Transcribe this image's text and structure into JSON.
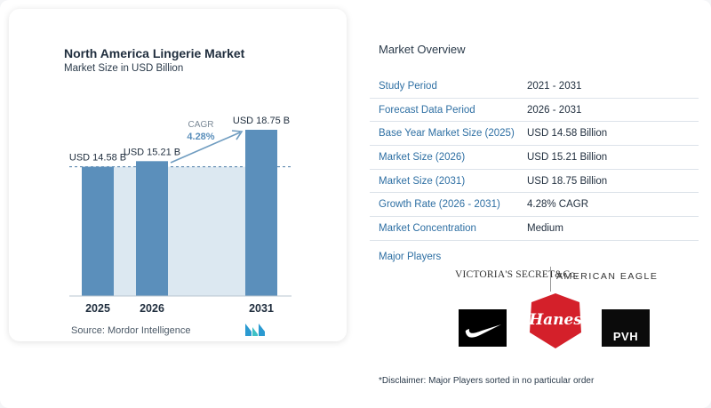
{
  "chart_data": {
    "type": "bar",
    "title": "North America Lingerie Market",
    "subtitle": "Market Size in USD Billion",
    "categories": [
      "2025",
      "2026",
      "2031"
    ],
    "values": [
      14.58,
      15.21,
      18.75
    ],
    "value_labels": [
      "USD 14.58 B",
      "USD 15.21 B",
      "USD 18.75 B"
    ],
    "ylim": [
      0,
      18.75
    ],
    "grid": false,
    "bar_color": "#5b8fbb",
    "band_color": "#dce8f1",
    "cagr_label": "CAGR",
    "cagr_value": "4.28%",
    "source": "Source:  Mordor Intelligence"
  },
  "overview": {
    "title": "Market Overview",
    "rows": [
      {
        "key": "Study Period",
        "value": "2021 - 2031"
      },
      {
        "key": "Forecast Data Period",
        "value": "2026 - 2031"
      },
      {
        "key": "Base Year Market Size (2025)",
        "value": "USD 14.58 Billion"
      },
      {
        "key": "Market Size (2026)",
        "value": "USD 15.21 Billion"
      },
      {
        "key": "Market Size (2031)",
        "value": "USD 18.75 Billion"
      },
      {
        "key": "Growth Rate (2026 - 2031)",
        "value": "4.28% CAGR"
      },
      {
        "key": "Market Concentration",
        "value": "Medium"
      }
    ]
  },
  "players": {
    "title": "Major Players",
    "logos": {
      "victorias_secret": "VICTORIA'S SECRET&Co.",
      "american_eagle": "AMERICAN EAGLE",
      "hanes": "Hanes",
      "pvh": "PVH",
      "nike": "nike-swoosh-icon"
    }
  },
  "disclaimer": "*Disclaimer: Major Players sorted in no particular order",
  "colors": {
    "accent": "#2e6fa3",
    "hanes_red": "#d4202a",
    "logo_teal": "#2b9ad1"
  }
}
